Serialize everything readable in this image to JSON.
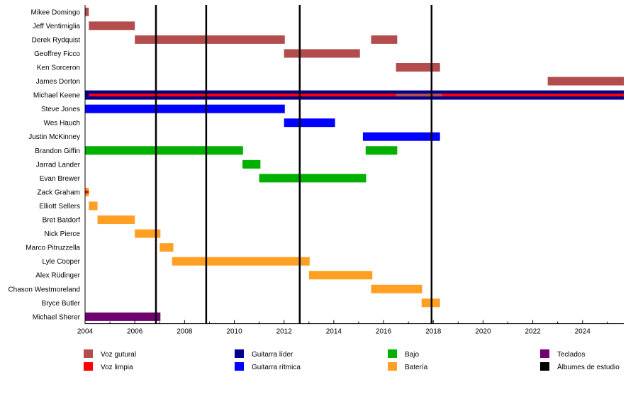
{
  "chart_data": {
    "type": "timeline",
    "xlim": [
      2004.0,
      2025.66
    ],
    "x_ticks": [
      2004,
      2006,
      2008,
      2010,
      2012,
      2014,
      2016,
      2018,
      2020,
      2022,
      2024
    ],
    "roles": {
      "voz_gutural": {
        "label": "Voz gutural",
        "color": "#b34c4c"
      },
      "voz_limpia": {
        "label": "Voz limpia",
        "color": "#ff0000"
      },
      "guitarra_lider": {
        "label": "Guitarra líder",
        "color": "#00008b"
      },
      "guitarra_ritmica": {
        "label": "Guitarra rítmica",
        "color": "#0000ff"
      },
      "bajo": {
        "label": "Bajo",
        "color": "#00b000"
      },
      "bateria": {
        "label": "Batería",
        "color": "#ffa024"
      },
      "teclados": {
        "label": "Teclados",
        "color": "#700070"
      },
      "albumes": {
        "label": "Álbumes de estudio",
        "color": "#000000"
      }
    },
    "legend_order": [
      [
        "voz_gutural",
        "voz_limpia"
      ],
      [
        "guitarra_lider",
        "guitarra_ritmica"
      ],
      [
        "bajo",
        "bateria"
      ],
      [
        "teclados",
        "albumes"
      ]
    ],
    "members": [
      {
        "name": "Mikee Domingo",
        "bars": [
          {
            "role": "voz_gutural",
            "from": 2004.0,
            "to": 2004.15
          }
        ]
      },
      {
        "name": "Jeff Ventimiglia",
        "bars": [
          {
            "role": "voz_gutural",
            "from": 2004.15,
            "to": 2006.0
          }
        ]
      },
      {
        "name": "Derek Rydquist",
        "bars": [
          {
            "role": "voz_gutural",
            "from": 2006.0,
            "to": 2012.03
          },
          {
            "role": "voz_gutural",
            "from": 2015.5,
            "to": 2016.55
          }
        ]
      },
      {
        "name": "Geoffrey Ficco",
        "bars": [
          {
            "role": "voz_gutural",
            "from": 2012.0,
            "to": 2015.05
          }
        ]
      },
      {
        "name": "Ken Sorceron",
        "bars": [
          {
            "role": "voz_gutural",
            "from": 2016.5,
            "to": 2018.27
          }
        ]
      },
      {
        "name": "James Dorton",
        "bars": [
          {
            "role": "voz_gutural",
            "from": 2022.6,
            "to": 2025.66
          }
        ]
      },
      {
        "name": "Michael Keene",
        "bars": [
          {
            "role": "guitarra_lider",
            "from": 2004.0,
            "to": 2025.66
          },
          {
            "role": "voz_limpia",
            "from": 2004.15,
            "to": 2025.66,
            "thin": true
          },
          {
            "role": "voz_gutural",
            "from": 2016.5,
            "to": 2018.35,
            "thin": true
          }
        ]
      },
      {
        "name": "Steve Jones",
        "bars": [
          {
            "role": "guitarra_ritmica",
            "from": 2004.0,
            "to": 2012.03
          }
        ]
      },
      {
        "name": "Wes Hauch",
        "bars": [
          {
            "role": "guitarra_ritmica",
            "from": 2012.0,
            "to": 2014.05
          }
        ]
      },
      {
        "name": "Justin McKinney",
        "bars": [
          {
            "role": "guitarra_ritmica",
            "from": 2015.17,
            "to": 2018.27
          }
        ]
      },
      {
        "name": "Brandon Giffin",
        "bars": [
          {
            "role": "bajo",
            "from": 2004.0,
            "to": 2010.35
          },
          {
            "role": "bajo",
            "from": 2015.28,
            "to": 2016.55
          }
        ]
      },
      {
        "name": "Jarrad Lander",
        "bars": [
          {
            "role": "bajo",
            "from": 2010.33,
            "to": 2011.05
          }
        ]
      },
      {
        "name": "Evan Brewer",
        "bars": [
          {
            "role": "bajo",
            "from": 2011.0,
            "to": 2015.3
          }
        ]
      },
      {
        "name": "Zack Graham",
        "bars": [
          {
            "role": "bateria",
            "from": 2004.0,
            "to": 2004.15
          },
          {
            "role": "voz_limpia",
            "from": 2004.0,
            "to": 2004.15,
            "thin": true
          }
        ]
      },
      {
        "name": "Elliott Sellers",
        "bars": [
          {
            "role": "bateria",
            "from": 2004.15,
            "to": 2004.5
          }
        ]
      },
      {
        "name": "Bret Batdorf",
        "bars": [
          {
            "role": "bateria",
            "from": 2004.5,
            "to": 2006.0
          }
        ]
      },
      {
        "name": "Nick Pierce",
        "bars": [
          {
            "role": "bateria",
            "from": 2006.0,
            "to": 2007.03
          }
        ]
      },
      {
        "name": "Marco Pitruzzella",
        "bars": [
          {
            "role": "bateria",
            "from": 2007.0,
            "to": 2007.55
          }
        ]
      },
      {
        "name": "Lyle Cooper",
        "bars": [
          {
            "role": "bateria",
            "from": 2007.5,
            "to": 2013.03
          }
        ]
      },
      {
        "name": "Alex Rüdinger",
        "bars": [
          {
            "role": "bateria",
            "from": 2013.0,
            "to": 2015.55
          }
        ]
      },
      {
        "name": "Chason Westmoreland",
        "bars": [
          {
            "role": "bateria",
            "from": 2015.5,
            "to": 2017.55
          }
        ]
      },
      {
        "name": "Bryce Butler",
        "bars": [
          {
            "role": "bateria",
            "from": 2017.53,
            "to": 2018.27
          }
        ]
      },
      {
        "name": "Michael Sherer",
        "bars": [
          {
            "role": "teclados",
            "from": 2004.0,
            "to": 2007.03
          }
        ]
      }
    ],
    "albums": [
      2006.85,
      2008.87,
      2012.63,
      2017.93
    ]
  }
}
